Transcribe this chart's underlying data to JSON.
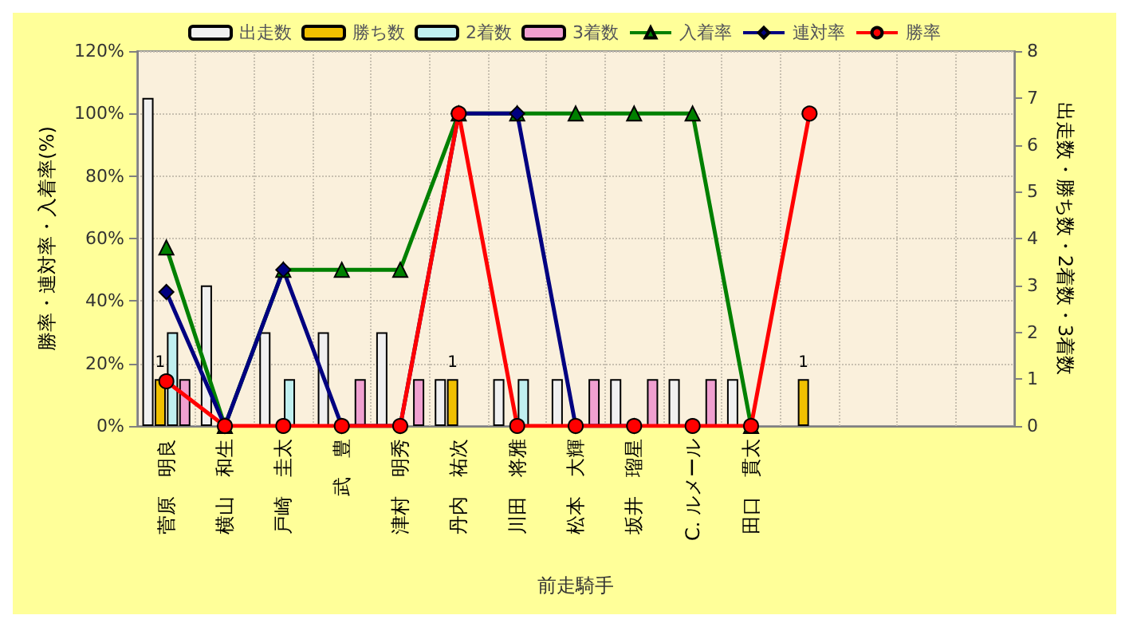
{
  "chart_data": {
    "type": "bar",
    "xlabel": "前走騎手",
    "ylabel": "勝率・連対率・入着率(%)",
    "y2label": "出走数・勝ち数・2着数・3着数",
    "categories": [
      "菅原　明良",
      "横山　和生",
      "戸崎　圭太",
      "武　豊",
      "津村　明秀",
      "丹内　祐次",
      "川田　将雅",
      "松本　大輝",
      "坂井　瑠星",
      "C. ルメール",
      "田口　貫太",
      null,
      null,
      null,
      null
    ],
    "series": [
      {
        "name": "出走数",
        "axis": "y2",
        "color": "#f0f0f0",
        "values": [
          7,
          3,
          2,
          2,
          2,
          1,
          1,
          1,
          1,
          1,
          1,
          null,
          null,
          null,
          null
        ]
      },
      {
        "name": "勝ち数",
        "axis": "y2",
        "color": "#f0c000",
        "values": [
          1,
          null,
          null,
          null,
          null,
          1,
          null,
          null,
          null,
          null,
          null,
          1,
          null,
          null,
          null
        ],
        "value_labels": [
          "1",
          null,
          null,
          null,
          null,
          "1",
          null,
          null,
          null,
          null,
          null,
          "1",
          null,
          null,
          null
        ]
      },
      {
        "name": "2着数",
        "axis": "y2",
        "color": "#c0f0f0",
        "values": [
          2,
          null,
          1,
          null,
          null,
          null,
          1,
          null,
          null,
          null,
          null,
          null,
          null,
          null,
          null
        ]
      },
      {
        "name": "3着数",
        "axis": "y2",
        "color": "#f0a0d0",
        "values": [
          1,
          null,
          null,
          1,
          1,
          null,
          null,
          1,
          1,
          1,
          null,
          null,
          null,
          null,
          null
        ]
      },
      {
        "name": "入着率",
        "type": "line",
        "marker": "triangle",
        "color": "#008000",
        "values": [
          57.1,
          0,
          50,
          50,
          50,
          100,
          100,
          100,
          100,
          100,
          0,
          null,
          null,
          null,
          null
        ]
      },
      {
        "name": "連対率",
        "type": "line",
        "marker": "diamond",
        "color": "#000080",
        "values": [
          42.9,
          0,
          50,
          0,
          0,
          100,
          100,
          0,
          0,
          null,
          null,
          null,
          null,
          null,
          null
        ]
      },
      {
        "name": "勝率",
        "type": "line",
        "marker": "circle",
        "color": "#ff0000",
        "values": [
          14.3,
          0,
          0,
          0,
          0,
          100,
          0,
          0,
          0,
          0,
          0,
          100,
          null,
          null,
          null
        ]
      }
    ],
    "ylim": [
      0,
      120
    ],
    "yticks": [
      {
        "value": 0,
        "label": "0%"
      },
      {
        "value": 20,
        "label": "20%"
      },
      {
        "value": 40,
        "label": "40%"
      },
      {
        "value": 60,
        "label": "60%"
      },
      {
        "value": 80,
        "label": "80%"
      },
      {
        "value": 100,
        "label": "100%"
      },
      {
        "value": 120,
        "label": "120%"
      }
    ],
    "y2lim": [
      0,
      8
    ],
    "y2ticks": [
      0,
      1,
      2,
      3,
      4,
      5,
      6,
      7,
      8
    ],
    "grid": true,
    "legend": "top",
    "line_style": "solid"
  }
}
